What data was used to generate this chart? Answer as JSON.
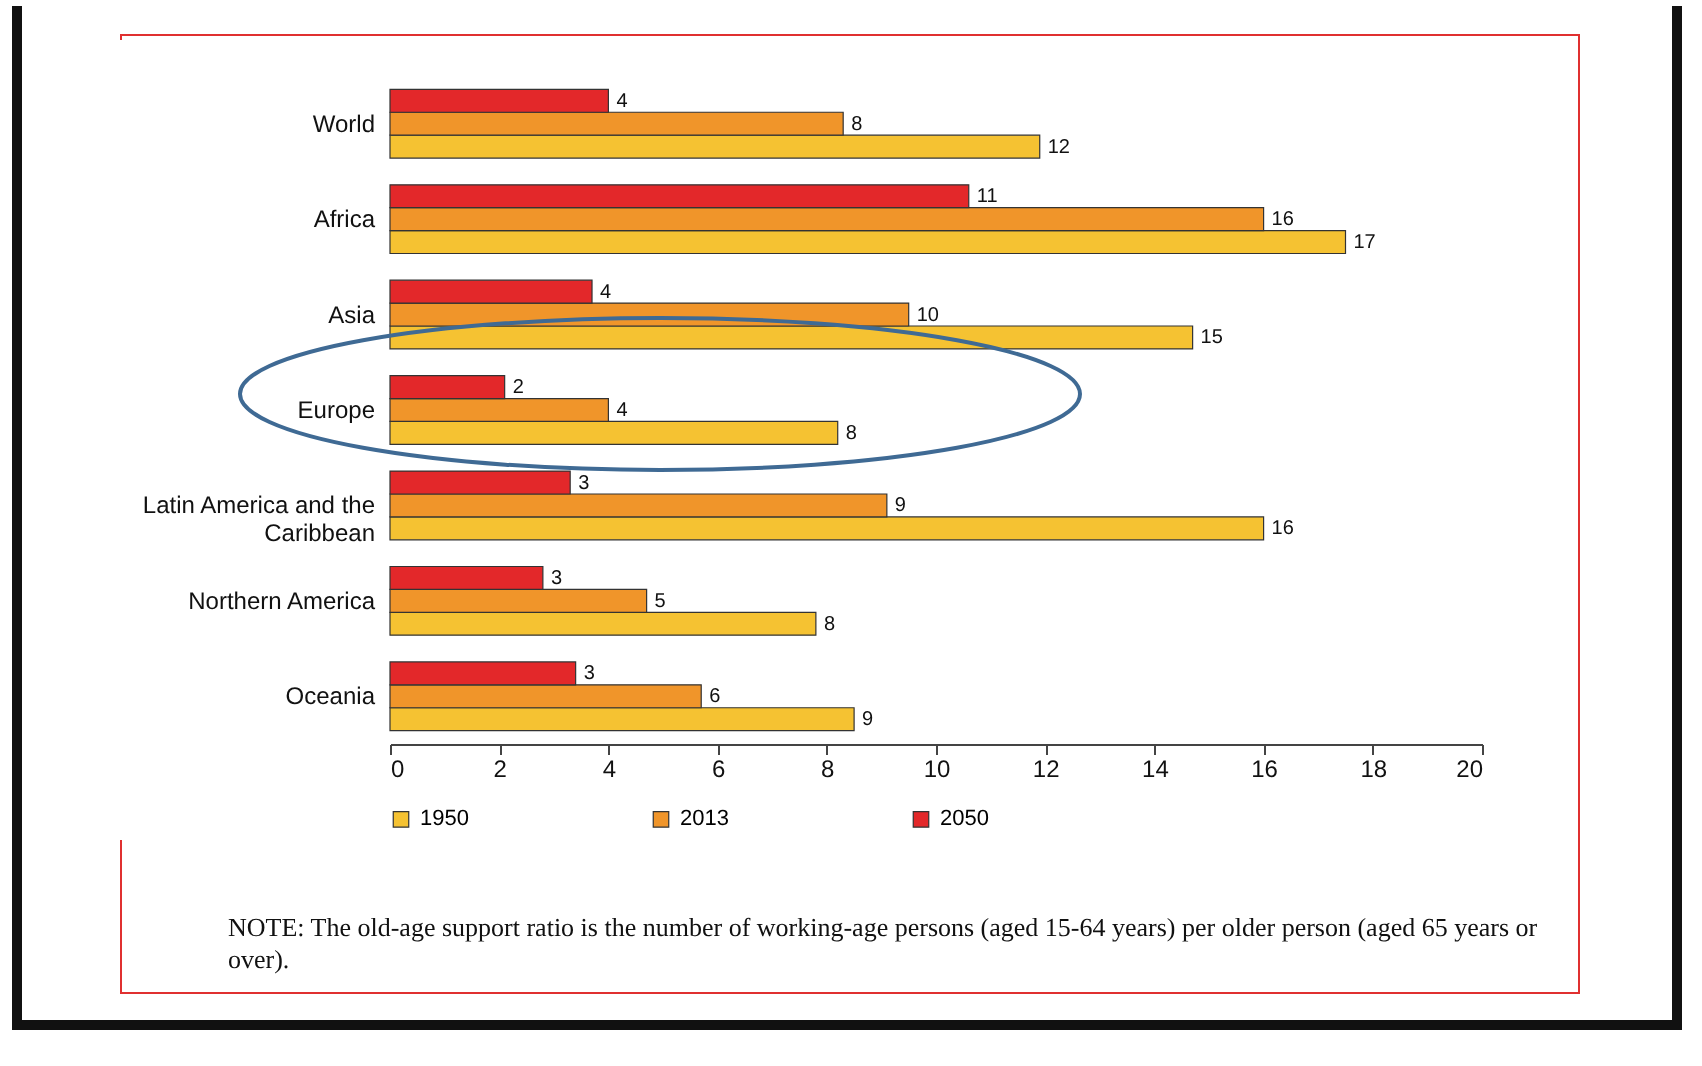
{
  "chart_data": {
    "type": "bar",
    "orientation": "horizontal",
    "categories": [
      "World",
      "Africa",
      "Asia",
      "Europe",
      "Latin America and the Caribbean",
      "Northern America",
      "Oceania"
    ],
    "series": [
      {
        "name": "1950",
        "color": "#f5c232",
        "values": [
          11.9,
          17.5,
          14.7,
          8.2,
          16.0,
          7.8,
          8.5
        ],
        "value_labels": [
          "12",
          "17",
          "15",
          "8",
          "16",
          "8",
          "9"
        ]
      },
      {
        "name": "2013",
        "color": "#f0952a",
        "values": [
          8.3,
          16.0,
          9.5,
          4.0,
          9.1,
          4.7,
          5.7
        ],
        "value_labels": [
          "8",
          "16",
          "10",
          "4",
          "9",
          "5",
          "6"
        ]
      },
      {
        "name": "2050",
        "color": "#e3282a",
        "values": [
          4.0,
          10.6,
          3.7,
          2.1,
          3.3,
          2.8,
          3.4
        ],
        "value_labels": [
          "4",
          "11",
          "4",
          "2",
          "3",
          "3",
          "3"
        ]
      }
    ],
    "xlim": [
      0,
      20
    ],
    "xticks": [
      0,
      2,
      4,
      6,
      8,
      10,
      12,
      14,
      16,
      18,
      20
    ],
    "grid": false,
    "legend": "bottom",
    "annotations": [
      "NOTE: The old-age support ratio is the number of working-age persons (aged 15-64 years) per older person (aged 65 years or over)."
    ]
  }
}
